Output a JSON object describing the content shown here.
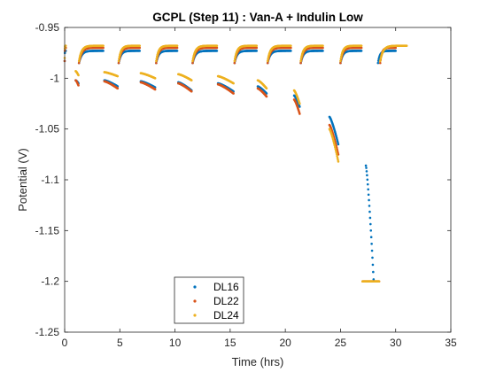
{
  "chart_data": {
    "type": "scatter",
    "title": "GCPL (Step 11) : Van-A + Indulin Low",
    "xlabel": "Time (hrs)",
    "ylabel": "Potential (V)",
    "xlim": [
      0,
      35
    ],
    "ylim": [
      -1.25,
      -0.95
    ],
    "xticks": [
      0,
      5,
      10,
      15,
      20,
      25,
      30,
      35
    ],
    "xtick_labels": [
      "0",
      "5",
      "10",
      "15",
      "20",
      "25",
      "30",
      "35"
    ],
    "yticks": [
      -0.95,
      -1,
      -1.05,
      -1.1,
      -1.15,
      -1.2,
      -1.25
    ],
    "ytick_labels": [
      "-0.95",
      "-1",
      "-1.05",
      "-1.1",
      "-1.15",
      "-1.2",
      "-1.25"
    ],
    "grid": false,
    "legend_position": "bottom-left",
    "colors": {
      "DL16": "#0072BD",
      "DL22": "#D95319",
      "DL24": "#EDB120"
    },
    "series": [
      {
        "name": "DL16",
        "color": "#0072BD",
        "segments": [
          {
            "kind": "rest",
            "t0": 0,
            "t1": 0.1,
            "v0": -0.983,
            "v1": -0.973
          },
          {
            "kind": "pulse",
            "t0": 1.0,
            "t1": 1.25,
            "v0": -1.002,
            "v1": -1.005
          },
          {
            "kind": "rest",
            "t0": 1.3,
            "t1": 3.5,
            "v0": -0.985,
            "v1": -0.973
          },
          {
            "kind": "pulse",
            "t0": 3.6,
            "t1": 4.8,
            "v0": -1.002,
            "v1": -1.008
          },
          {
            "kind": "rest",
            "t0": 4.9,
            "t1": 6.8,
            "v0": -0.985,
            "v1": -0.973
          },
          {
            "kind": "pulse",
            "t0": 6.9,
            "t1": 8.2,
            "v0": -1.003,
            "v1": -1.009
          },
          {
            "kind": "rest",
            "t0": 8.3,
            "t1": 10.2,
            "v0": -0.985,
            "v1": -0.973
          },
          {
            "kind": "pulse",
            "t0": 10.3,
            "t1": 11.5,
            "v0": -1.004,
            "v1": -1.012
          },
          {
            "kind": "rest",
            "t0": 11.6,
            "t1": 13.8,
            "v0": -0.985,
            "v1": -0.973
          },
          {
            "kind": "pulse",
            "t0": 13.9,
            "t1": 15.3,
            "v0": -1.005,
            "v1": -1.013
          },
          {
            "kind": "rest",
            "t0": 15.4,
            "t1": 17.4,
            "v0": -0.985,
            "v1": -0.973
          },
          {
            "kind": "pulse",
            "t0": 17.5,
            "t1": 18.3,
            "v0": -1.008,
            "v1": -1.015
          },
          {
            "kind": "rest",
            "t0": 18.4,
            "t1": 20.5,
            "v0": -0.985,
            "v1": -0.973
          },
          {
            "kind": "pulse",
            "t0": 20.8,
            "t1": 21.3,
            "v0": -1.017,
            "v1": -1.028
          },
          {
            "kind": "rest",
            "t0": 21.4,
            "t1": 23.4,
            "v0": -0.985,
            "v1": -0.973
          },
          {
            "kind": "pulse",
            "t0": 24.0,
            "t1": 24.8,
            "v0": -1.038,
            "v1": -1.065
          },
          {
            "kind": "rest",
            "t0": 25.0,
            "t1": 26.9,
            "v0": -0.985,
            "v1": -0.973
          },
          {
            "kind": "pulse",
            "t0": 27.3,
            "t1": 28.0,
            "v0": -1.086,
            "v1": -1.198
          },
          {
            "kind": "rest",
            "t0": 28.4,
            "t1": 30.0,
            "v0": -0.985,
            "v1": -0.973
          }
        ]
      },
      {
        "name": "DL22",
        "color": "#D95319",
        "segments": [
          {
            "kind": "rest",
            "t0": 0,
            "t1": 0.1,
            "v0": -0.983,
            "v1": -0.97
          },
          {
            "kind": "pulse",
            "t0": 1.0,
            "t1": 1.25,
            "v0": -1.002,
            "v1": -1.007
          },
          {
            "kind": "rest",
            "t0": 1.3,
            "t1": 3.5,
            "v0": -0.985,
            "v1": -0.97
          },
          {
            "kind": "pulse",
            "t0": 3.6,
            "t1": 4.8,
            "v0": -1.003,
            "v1": -1.01
          },
          {
            "kind": "rest",
            "t0": 4.9,
            "t1": 6.8,
            "v0": -0.985,
            "v1": -0.97
          },
          {
            "kind": "pulse",
            "t0": 6.9,
            "t1": 8.2,
            "v0": -1.004,
            "v1": -1.011
          },
          {
            "kind": "rest",
            "t0": 8.3,
            "t1": 10.2,
            "v0": -0.985,
            "v1": -0.97
          },
          {
            "kind": "pulse",
            "t0": 10.3,
            "t1": 11.5,
            "v0": -1.005,
            "v1": -1.013
          },
          {
            "kind": "rest",
            "t0": 11.6,
            "t1": 13.8,
            "v0": -0.985,
            "v1": -0.97
          },
          {
            "kind": "pulse",
            "t0": 13.9,
            "t1": 15.3,
            "v0": -1.006,
            "v1": -1.015
          },
          {
            "kind": "rest",
            "t0": 15.4,
            "t1": 17.4,
            "v0": -0.985,
            "v1": -0.97
          },
          {
            "kind": "pulse",
            "t0": 17.5,
            "t1": 18.3,
            "v0": -1.01,
            "v1": -1.018
          },
          {
            "kind": "rest",
            "t0": 18.4,
            "t1": 20.5,
            "v0": -0.985,
            "v1": -0.97
          },
          {
            "kind": "pulse",
            "t0": 20.8,
            "t1": 21.3,
            "v0": -1.021,
            "v1": -1.035
          },
          {
            "kind": "rest",
            "t0": 21.4,
            "t1": 23.4,
            "v0": -0.985,
            "v1": -0.97
          },
          {
            "kind": "pulse",
            "t0": 24.0,
            "t1": 24.8,
            "v0": -1.046,
            "v1": -1.075
          },
          {
            "kind": "rest",
            "t0": 25.0,
            "t1": 26.9,
            "v0": -0.985,
            "v1": -0.97
          },
          {
            "kind": "pulse",
            "t0": 27.0,
            "t1": 28.5,
            "v0": -1.2,
            "v1": -1.2
          },
          {
            "kind": "rest",
            "t0": 28.6,
            "t1": 30.0,
            "v0": -0.985,
            "v1": -0.97
          }
        ]
      },
      {
        "name": "DL24",
        "color": "#EDB120",
        "segments": [
          {
            "kind": "rest",
            "t0": 0,
            "t1": 0.1,
            "v0": -0.98,
            "v1": -0.968
          },
          {
            "kind": "pulse",
            "t0": 1.0,
            "t1": 1.25,
            "v0": -0.993,
            "v1": -0.997
          },
          {
            "kind": "rest",
            "t0": 1.3,
            "t1": 3.5,
            "v0": -0.983,
            "v1": -0.968
          },
          {
            "kind": "pulse",
            "t0": 3.6,
            "t1": 4.8,
            "v0": -0.994,
            "v1": -0.998
          },
          {
            "kind": "rest",
            "t0": 4.9,
            "t1": 6.8,
            "v0": -0.983,
            "v1": -0.968
          },
          {
            "kind": "pulse",
            "t0": 6.9,
            "t1": 8.2,
            "v0": -0.995,
            "v1": -1.0
          },
          {
            "kind": "rest",
            "t0": 8.3,
            "t1": 10.2,
            "v0": -0.983,
            "v1": -0.968
          },
          {
            "kind": "pulse",
            "t0": 10.3,
            "t1": 11.5,
            "v0": -0.996,
            "v1": -1.002
          },
          {
            "kind": "rest",
            "t0": 11.6,
            "t1": 13.8,
            "v0": -0.983,
            "v1": -0.968
          },
          {
            "kind": "pulse",
            "t0": 13.9,
            "t1": 15.3,
            "v0": -0.998,
            "v1": -1.005
          },
          {
            "kind": "rest",
            "t0": 15.4,
            "t1": 17.4,
            "v0": -0.983,
            "v1": -0.968
          },
          {
            "kind": "pulse",
            "t0": 17.5,
            "t1": 18.3,
            "v0": -1.002,
            "v1": -1.01
          },
          {
            "kind": "rest",
            "t0": 18.4,
            "t1": 20.5,
            "v0": -0.983,
            "v1": -0.968
          },
          {
            "kind": "pulse",
            "t0": 20.8,
            "t1": 21.3,
            "v0": -1.012,
            "v1": -1.025
          },
          {
            "kind": "rest",
            "t0": 21.4,
            "t1": 23.4,
            "v0": -0.983,
            "v1": -0.968
          },
          {
            "kind": "pulse",
            "t0": 24.0,
            "t1": 24.8,
            "v0": -1.05,
            "v1": -1.082
          },
          {
            "kind": "rest",
            "t0": 25.0,
            "t1": 26.9,
            "v0": -0.983,
            "v1": -0.968
          },
          {
            "kind": "pulse",
            "t0": 27.0,
            "t1": 28.5,
            "v0": -1.2,
            "v1": -1.2
          },
          {
            "kind": "rest",
            "t0": 28.6,
            "t1": 31.0,
            "v0": -0.983,
            "v1": -0.968
          }
        ]
      }
    ]
  }
}
